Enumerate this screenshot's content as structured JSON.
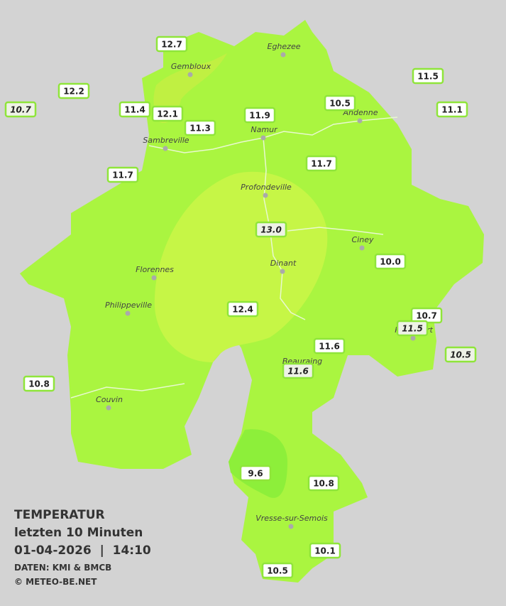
{
  "legend": {
    "title": "TEMPERATUR",
    "period": "letzten 10 Minuten",
    "timestamp": "01-04-2026  |  14:10",
    "source": "DATEN: KMI & BMCB",
    "credit": "© METEO-BE.NET"
  },
  "cities": [
    "Eghezee",
    "Gembloux",
    "Andenne",
    "Namur",
    "Sambreville",
    "Profondeville",
    "Ciney",
    "Dinant",
    "Florennes",
    "Philippeville",
    "Rochefort",
    "Beauraing",
    "Couvin",
    "Vresse-sur-Semois"
  ],
  "stations": [
    "12.7",
    "12.2",
    "10.7",
    "11.4",
    "12.1",
    "11.3",
    "11.9",
    "10.5",
    "11.5",
    "11.1",
    "11.7",
    "11.7",
    "13.0",
    "10.0",
    "12.4",
    "10.7",
    "11.5",
    "10.5",
    "11.6",
    "11.6",
    "10.8",
    "9.6",
    "10.8",
    "10.1",
    "10.5"
  ]
}
